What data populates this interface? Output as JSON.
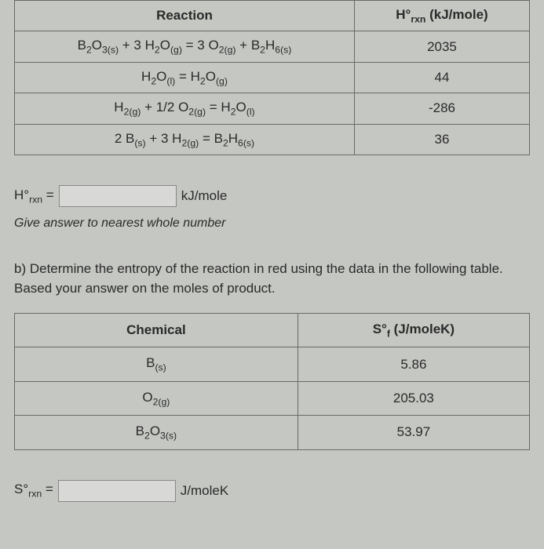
{
  "table1": {
    "headers": [
      "Reaction",
      "H°rxn (kJ/mole)"
    ],
    "rows": [
      {
        "reaction": "B2O3(s) + 3 H2O(g) = 3 O2(g) + B2H6(s)",
        "h": "2035"
      },
      {
        "reaction": "H2O(l) = H2O(g)",
        "h": "44"
      },
      {
        "reaction": "H2(g) + 1/2 O2(g) = H2O(l)",
        "h": "-286"
      },
      {
        "reaction": "2 B(s) + 3 H2(g) = B2H6(s)",
        "h": "36"
      }
    ]
  },
  "answer1": {
    "prefix": "H°rxn =",
    "unit": "kJ/mole"
  },
  "instruction": "Give answer to nearest whole number",
  "questionB": "b) Determine the entropy of the reaction in red using the data in the following table. Based your answer on the moles of product.",
  "table2": {
    "headers": [
      "Chemical",
      "S°f (J/moleK)"
    ],
    "rows": [
      {
        "chem": "B(s)",
        "s": "5.86"
      },
      {
        "chem": "O2(g)",
        "s": "205.03"
      },
      {
        "chem": "B2O3(s)",
        "s": "53.97"
      }
    ]
  },
  "answer2": {
    "prefix": "S°rxn =",
    "unit": "J/moleK"
  }
}
